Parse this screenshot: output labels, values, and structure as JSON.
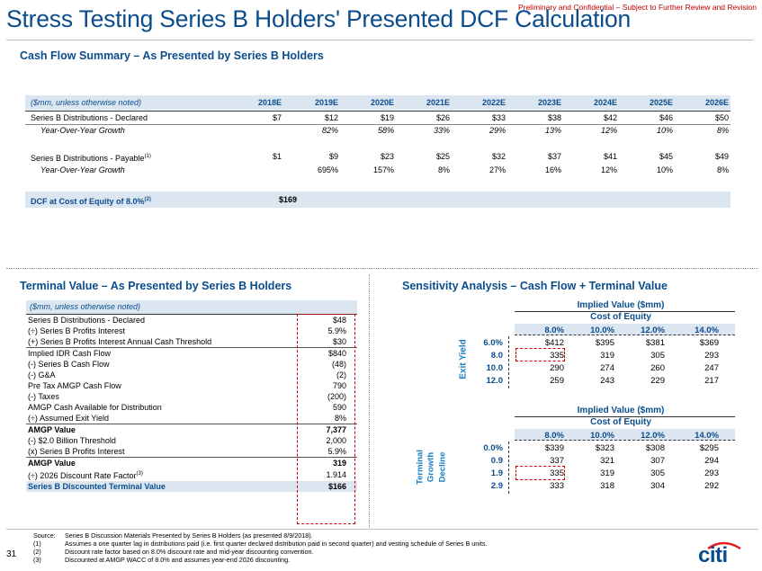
{
  "confidential_notice": "Preliminary and Confidential – Subject to Further Review and Revision",
  "title": "Stress Testing Series B Holders' Presented DCF Calculation",
  "cash_flow": {
    "section_title": "Cash Flow Summary – As Presented by Series B Holders",
    "header_label": "($mm, unless otherwise noted)",
    "years": [
      "2018E",
      "2019E",
      "2020E",
      "2021E",
      "2022E",
      "2023E",
      "2024E",
      "2025E",
      "2026E"
    ],
    "declared_label": "Series B Distributions - Declared",
    "declared_values": [
      "$7",
      "$12",
      "$19",
      "$26",
      "$33",
      "$38",
      "$42",
      "$46",
      "$50"
    ],
    "yoy_label": "Year-Over-Year Growth",
    "declared_growth": [
      "82%",
      "58%",
      "33%",
      "29%",
      "13%",
      "12%",
      "10%",
      "8%"
    ],
    "payable_label": "Series B Distributions - Payable",
    "payable_sup": "(1)",
    "payable_values": [
      "$1",
      "$9",
      "$23",
      "$25",
      "$32",
      "$37",
      "$41",
      "$45",
      "$49"
    ],
    "payable_growth": [
      "695%",
      "157%",
      "8%",
      "27%",
      "16%",
      "12%",
      "10%",
      "8%"
    ],
    "dcf_label": "DCF at Cost of Equity of 8.0%",
    "dcf_sup": "(2)",
    "dcf_value": "$169"
  },
  "terminal": {
    "section_title": "Terminal Value – As Presented by Series B Holders",
    "header_label": "($mm, unless otherwise noted)",
    "rows": [
      {
        "label": "Series B Distributions - Declared",
        "value": "$48"
      },
      {
        "label": "(÷) Series B Profits Interest",
        "value": "5.9%"
      },
      {
        "label": "(+) Series B Profits Interest Annual Cash Threshold",
        "value": "$30"
      },
      {
        "label": "Implied IDR Cash Flow",
        "value": "$840"
      },
      {
        "label": "(-) Series B Cash Flow",
        "value": "(48)"
      },
      {
        "label": "(-) G&A",
        "value": "(2)"
      },
      {
        "label": "Pre Tax AMGP Cash Flow",
        "value": "790"
      },
      {
        "label": "(-) Taxes",
        "value": "(200)"
      },
      {
        "label": "AMGP Cash Available for Distribution",
        "value": "590"
      },
      {
        "label": "(÷) Assumed Exit Yield",
        "value": "8%"
      },
      {
        "label": "AMGP Value",
        "value": "7,377"
      },
      {
        "label": "(-) $2.0 Billion Threshold",
        "value": "2,000"
      },
      {
        "label": "(x) Series B Profits Interest",
        "value": "5.9%"
      },
      {
        "label": "AMGP Value",
        "value": "319"
      },
      {
        "label": "(÷) 2026 Discount Rate Factor",
        "value": "1.914"
      },
      {
        "label": "Series B Discounted Terminal Value",
        "value": "$166"
      }
    ],
    "discount_sup": "(3)"
  },
  "sensitivity": {
    "section_title": "Sensitivity Analysis – Cash Flow + Terminal Value",
    "table1": {
      "title": "Implied Value ($mm)",
      "subtitle": "Cost of Equity",
      "cols": [
        "8.0%",
        "10.0%",
        "12.0%",
        "14.0%"
      ],
      "axis_label": "Exit Yield",
      "rows": [
        {
          "label": "6.0%",
          "values": [
            "$412",
            "$395",
            "$381",
            "$369"
          ]
        },
        {
          "label": "8.0",
          "values": [
            "335",
            "319",
            "305",
            "293"
          ]
        },
        {
          "label": "10.0",
          "values": [
            "290",
            "274",
            "260",
            "247"
          ]
        },
        {
          "label": "12.0",
          "values": [
            "259",
            "243",
            "229",
            "217"
          ]
        }
      ]
    },
    "table2": {
      "title": "Implied Value ($mm)",
      "subtitle": "Cost of Equity",
      "cols": [
        "8.0%",
        "10.0%",
        "12.0%",
        "14.0%"
      ],
      "axis_label_1": "Terminal",
      "axis_label_2": "Growth",
      "axis_label_3": "Decline",
      "rows": [
        {
          "label": "0.0%",
          "values": [
            "$339",
            "$323",
            "$308",
            "$295"
          ]
        },
        {
          "label": "0.9",
          "values": [
            "337",
            "321",
            "307",
            "294"
          ]
        },
        {
          "label": "1.9",
          "values": [
            "335",
            "319",
            "305",
            "293"
          ]
        },
        {
          "label": "2.9",
          "values": [
            "333",
            "318",
            "304",
            "292"
          ]
        }
      ]
    }
  },
  "footnotes": {
    "source_label": "Source:",
    "source_text": "Series B Discussion Materials Presented by Series B Holders (as presented 8/9/2018).",
    "notes": [
      {
        "num": "(1)",
        "text": "Assumes a one quarter lag in distributions paid (i.e. first quarter declared distribution paid in second quarter) and vesting schedule of Series B units."
      },
      {
        "num": "(2)",
        "text": "Discount rate factor based on 8.0% discount rate and mid-year discounting convention."
      },
      {
        "num": "(3)",
        "text": "Discounted at AMGP WACC of 8.0% and assumes year-end 2026 discounting."
      }
    ]
  },
  "page_number": "31",
  "logo_text": "citi",
  "colors": {
    "title_blue": "#0b4d8c",
    "band": "#dce6f1",
    "accent_red": "#c00000",
    "axis_blue": "#1a7fc1"
  }
}
